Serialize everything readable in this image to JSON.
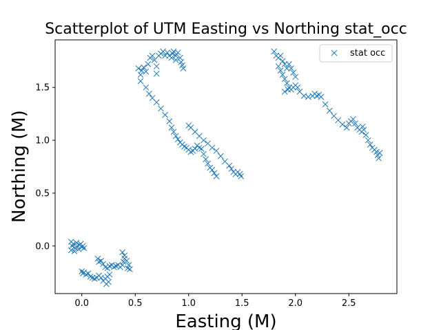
{
  "chart_data": {
    "type": "scatter",
    "title": "Scatterplot of UTM Easting vs Northing stat_occ",
    "xlabel": "Easting (M)",
    "ylabel": "Northing (M)",
    "xlim": [
      -0.25,
      2.95
    ],
    "ylim": [
      -0.45,
      1.95
    ],
    "xticks": [
      0.0,
      0.5,
      1.0,
      1.5,
      2.0,
      2.5
    ],
    "xtick_labels": [
      "0.0",
      "0.5",
      "1.0",
      "1.5",
      "2.0",
      "2.5"
    ],
    "yticks": [
      0.0,
      0.5,
      1.0,
      1.5
    ],
    "ytick_labels": [
      "0.0",
      "0.5",
      "1.0",
      "1.5"
    ],
    "grid": false,
    "legend_position": "top-right",
    "marker": "x",
    "series": [
      {
        "name": "stat occ",
        "color": "#1f77b4",
        "points": [
          [
            -0.1,
            0.04
          ],
          [
            -0.09,
            0.0
          ],
          [
            -0.1,
            -0.04
          ],
          [
            -0.08,
            0.02
          ],
          [
            -0.06,
            -0.02
          ],
          [
            -0.04,
            0.0
          ],
          [
            -0.02,
            0.01
          ],
          [
            0.0,
            -0.01
          ],
          [
            -0.01,
            0.02
          ],
          [
            0.01,
            0.0
          ],
          [
            -0.03,
            -0.03
          ],
          [
            -0.07,
            -0.05
          ],
          [
            0.02,
            -0.02
          ],
          [
            -0.05,
            0.03
          ],
          [
            0.0,
            -0.24
          ],
          [
            0.01,
            -0.26
          ],
          [
            0.02,
            -0.25
          ],
          [
            0.04,
            -0.27
          ],
          [
            0.06,
            -0.26
          ],
          [
            0.08,
            -0.29
          ],
          [
            0.1,
            -0.3
          ],
          [
            0.12,
            -0.31
          ],
          [
            0.14,
            -0.3
          ],
          [
            0.16,
            -0.28
          ],
          [
            0.18,
            -0.3
          ],
          [
            0.2,
            -0.33
          ],
          [
            0.22,
            -0.31
          ],
          [
            0.24,
            -0.29
          ],
          [
            0.26,
            -0.27
          ],
          [
            0.25,
            -0.34
          ],
          [
            0.23,
            -0.36
          ],
          [
            0.15,
            -0.12
          ],
          [
            0.16,
            -0.15
          ],
          [
            0.18,
            -0.14
          ],
          [
            0.2,
            -0.17
          ],
          [
            0.22,
            -0.2
          ],
          [
            0.24,
            -0.21
          ],
          [
            0.26,
            -0.19
          ],
          [
            0.28,
            -0.18
          ],
          [
            0.3,
            -0.2
          ],
          [
            0.32,
            -0.19
          ],
          [
            0.34,
            -0.18
          ],
          [
            0.36,
            -0.2
          ],
          [
            0.38,
            -0.18
          ],
          [
            0.39,
            -0.15
          ],
          [
            0.4,
            -0.12
          ],
          [
            0.38,
            -0.06
          ],
          [
            0.4,
            -0.09
          ],
          [
            0.42,
            -0.14
          ],
          [
            0.44,
            -0.18
          ],
          [
            0.43,
            -0.21
          ],
          [
            0.45,
            -0.22
          ],
          [
            0.53,
            1.68
          ],
          [
            0.55,
            1.62
          ],
          [
            0.55,
            1.56
          ],
          [
            0.56,
            1.66
          ],
          [
            0.58,
            1.69
          ],
          [
            0.6,
            1.65
          ],
          [
            0.62,
            1.72
          ],
          [
            0.64,
            1.78
          ],
          [
            0.66,
            1.8
          ],
          [
            0.68,
            1.76
          ],
          [
            0.7,
            1.7
          ],
          [
            0.7,
            1.63
          ],
          [
            0.72,
            1.8
          ],
          [
            0.74,
            1.82
          ],
          [
            0.76,
            1.84
          ],
          [
            0.78,
            1.8
          ],
          [
            0.8,
            1.83
          ],
          [
            0.82,
            1.8
          ],
          [
            0.84,
            1.78
          ],
          [
            0.85,
            1.82
          ],
          [
            0.86,
            1.84
          ],
          [
            0.88,
            1.8
          ],
          [
            0.88,
            1.76
          ],
          [
            0.9,
            1.83
          ],
          [
            0.92,
            1.78
          ],
          [
            0.93,
            1.74
          ],
          [
            0.94,
            1.71
          ],
          [
            0.95,
            1.68
          ],
          [
            0.6,
            1.5
          ],
          [
            0.63,
            1.44
          ],
          [
            0.66,
            1.4
          ],
          [
            0.7,
            1.36
          ],
          [
            0.74,
            1.3
          ],
          [
            0.78,
            1.24
          ],
          [
            0.82,
            1.18
          ],
          [
            0.84,
            1.12
          ],
          [
            0.86,
            1.08
          ],
          [
            0.88,
            1.04
          ],
          [
            0.9,
            1.01
          ],
          [
            0.92,
            0.98
          ],
          [
            0.94,
            0.96
          ],
          [
            0.96,
            0.94
          ],
          [
            0.98,
            0.93
          ],
          [
            1.0,
            0.91
          ],
          [
            1.02,
            0.89
          ],
          [
            1.04,
            0.9
          ],
          [
            1.06,
            0.92
          ],
          [
            1.08,
            0.95
          ],
          [
            1.1,
            0.93
          ],
          [
            1.12,
            0.92
          ],
          [
            1.14,
            0.87
          ],
          [
            1.16,
            0.82
          ],
          [
            1.18,
            0.78
          ],
          [
            1.2,
            0.74
          ],
          [
            1.22,
            0.72
          ],
          [
            1.24,
            0.69
          ],
          [
            1.26,
            0.66
          ],
          [
            1.0,
            1.14
          ],
          [
            1.02,
            1.12
          ],
          [
            1.06,
            1.08
          ],
          [
            1.1,
            1.04
          ],
          [
            1.14,
            1.0
          ],
          [
            1.18,
            0.97
          ],
          [
            1.22,
            0.93
          ],
          [
            1.26,
            0.9
          ],
          [
            1.3,
            0.85
          ],
          [
            1.34,
            0.8
          ],
          [
            1.38,
            0.76
          ],
          [
            1.4,
            0.73
          ],
          [
            1.42,
            0.7
          ],
          [
            1.44,
            0.68
          ],
          [
            1.46,
            0.7
          ],
          [
            1.48,
            0.68
          ],
          [
            1.49,
            0.66
          ],
          [
            1.8,
            1.84
          ],
          [
            1.82,
            1.8
          ],
          [
            1.84,
            1.78
          ],
          [
            1.86,
            1.8
          ],
          [
            1.88,
            1.75
          ],
          [
            1.9,
            1.72
          ],
          [
            1.92,
            1.68
          ],
          [
            1.94,
            1.72
          ],
          [
            1.96,
            1.68
          ],
          [
            1.98,
            1.64
          ],
          [
            2.0,
            1.6
          ],
          [
            1.84,
            1.7
          ],
          [
            1.86,
            1.66
          ],
          [
            1.88,
            1.62
          ],
          [
            1.9,
            1.58
          ],
          [
            1.92,
            1.54
          ],
          [
            1.94,
            1.5
          ],
          [
            1.96,
            1.48
          ],
          [
            1.98,
            1.5
          ],
          [
            2.0,
            1.52
          ],
          [
            2.02,
            1.5
          ],
          [
            1.9,
            1.46
          ],
          [
            1.93,
            1.48
          ],
          [
            2.04,
            1.46
          ],
          [
            2.08,
            1.42
          ],
          [
            2.12,
            1.41
          ],
          [
            2.16,
            1.42
          ],
          [
            2.18,
            1.44
          ],
          [
            2.2,
            1.42
          ],
          [
            2.22,
            1.43
          ],
          [
            2.24,
            1.41
          ],
          [
            2.28,
            1.34
          ],
          [
            2.32,
            1.28
          ],
          [
            2.36,
            1.23
          ],
          [
            2.4,
            1.19
          ],
          [
            2.44,
            1.15
          ],
          [
            2.48,
            1.12
          ],
          [
            2.5,
            1.16
          ],
          [
            2.52,
            1.18
          ],
          [
            2.54,
            1.2
          ],
          [
            2.56,
            1.16
          ],
          [
            2.58,
            1.12
          ],
          [
            2.6,
            1.1
          ],
          [
            2.62,
            1.08
          ],
          [
            2.63,
            1.13
          ],
          [
            2.64,
            1.1
          ],
          [
            2.66,
            1.05
          ],
          [
            2.68,
            1.0
          ],
          [
            2.7,
            0.96
          ],
          [
            2.72,
            0.93
          ],
          [
            2.74,
            0.91
          ],
          [
            2.76,
            0.89
          ],
          [
            2.77,
            0.86
          ],
          [
            2.78,
            0.83
          ],
          [
            2.79,
            0.88
          ]
        ]
      }
    ]
  }
}
